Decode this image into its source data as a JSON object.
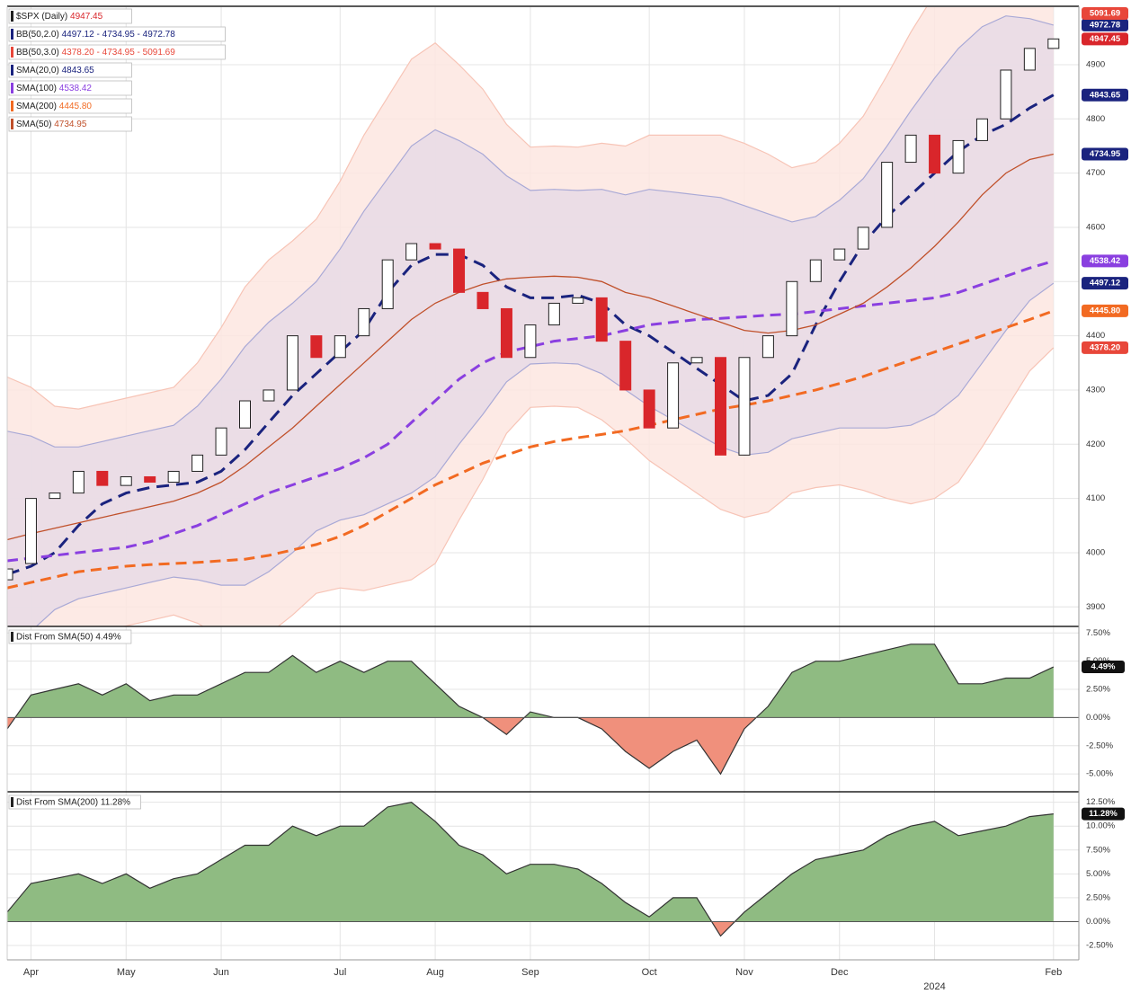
{
  "chart_data": [
    {
      "type": "candlestick",
      "categories": [
        null,
        "Apr",
        null,
        null,
        null,
        "May",
        null,
        null,
        null,
        "Jun",
        null,
        null,
        null,
        null,
        "Jul",
        null,
        null,
        null,
        "Aug",
        null,
        null,
        null,
        "Sep",
        null,
        null,
        null,
        null,
        "Oct",
        null,
        null,
        null,
        "Nov",
        null,
        null,
        null,
        "Dec",
        null,
        null,
        null,
        "2024",
        null,
        null,
        null,
        null,
        "Feb"
      ],
      "price": {
        "name": "$SPX (Daily)",
        "legend_value": "4947.45",
        "badge": "4947.45",
        "badge_color": "#d9262b",
        "open": [
          3950,
          3980,
          4100,
          4110,
          4150,
          4124,
          4140,
          4130,
          4150,
          4180,
          4230,
          4280,
          4300,
          4400,
          4360,
          4400,
          4450,
          4540,
          4570,
          4560,
          4480,
          4450,
          4360,
          4420,
          4460,
          4470,
          4390,
          4300,
          4230,
          4350,
          4360,
          4180,
          4360,
          4400,
          4500,
          4540,
          4560,
          4600,
          4720,
          4770,
          4700,
          4760,
          4800,
          4890,
          4930
        ],
        "close": [
          3970,
          4100,
          4110,
          4150,
          4124,
          4140,
          4130,
          4150,
          4180,
          4230,
          4280,
          4300,
          4400,
          4360,
          4400,
          4450,
          4540,
          4570,
          4560,
          4480,
          4450,
          4360,
          4420,
          4460,
          4470,
          4390,
          4300,
          4230,
          4350,
          4360,
          4180,
          4360,
          4400,
          4500,
          4540,
          4560,
          4600,
          4720,
          4770,
          4700,
          4760,
          4800,
          4890,
          4930,
          4947.45
        ],
        "up_color": "#222222",
        "down_color": "#d9262b"
      },
      "bands": [
        {
          "name": "BB(50,2.0)",
          "legend_value": "4497.12 - 4734.95 - 4972.78",
          "upper_badge": "4972.78",
          "lower_badge": "4497.12",
          "badge_color": "#1a237e",
          "fill": "#e7dbe6",
          "stroke": "#a9a9d6",
          "upper": [
            4224,
            4215,
            4195,
            4195,
            4205,
            4215,
            4225,
            4235,
            4270,
            4320,
            4380,
            4425,
            4460,
            4500,
            4560,
            4630,
            4690,
            4750,
            4780,
            4760,
            4735,
            4695,
            4668,
            4670,
            4668,
            4670,
            4660,
            4670,
            4665,
            4660,
            4655,
            4640,
            4625,
            4610,
            4620,
            4650,
            4690,
            4750,
            4815,
            4875,
            4930,
            4970,
            4990,
            4985,
            4973
          ],
          "lower": [
            3824,
            3855,
            3895,
            3915,
            3925,
            3935,
            3945,
            3955,
            3950,
            3940,
            3940,
            3965,
            4000,
            4040,
            4060,
            4070,
            4090,
            4110,
            4140,
            4200,
            4255,
            4315,
            4348,
            4350,
            4348,
            4330,
            4300,
            4270,
            4245,
            4220,
            4195,
            4180,
            4185,
            4210,
            4220,
            4230,
            4230,
            4230,
            4235,
            4255,
            4290,
            4350,
            4410,
            4465,
            4497
          ]
        },
        {
          "name": "BB(50,3.0)",
          "legend_value": "4378.20 - 4734.95 - 5091.69",
          "upper_badge": "5091.69",
          "lower_badge": "4378.20",
          "badge_color": "#e8473a",
          "fill": "#fde6e1",
          "stroke": "#f7c4b6",
          "upper": [
            4324,
            4305,
            4270,
            4265,
            4275,
            4285,
            4295,
            4305,
            4350,
            4415,
            4490,
            4540,
            4575,
            4615,
            4685,
            4770,
            4840,
            4910,
            4940,
            4900,
            4855,
            4790,
            4748,
            4750,
            4748,
            4755,
            4750,
            4770,
            4770,
            4770,
            4770,
            4755,
            4735,
            4710,
            4720,
            4755,
            4805,
            4880,
            4960,
            5030,
            5090,
            5125,
            5135,
            5115,
            5092
          ],
          "lower": [
            3724,
            3765,
            3820,
            3845,
            3855,
            3865,
            3875,
            3885,
            3870,
            3845,
            3830,
            3850,
            3885,
            3925,
            3935,
            3930,
            3940,
            3950,
            3980,
            4060,
            4135,
            4220,
            4268,
            4270,
            4268,
            4245,
            4210,
            4170,
            4140,
            4110,
            4080,
            4065,
            4075,
            4110,
            4120,
            4125,
            4115,
            4100,
            4090,
            4100,
            4130,
            4195,
            4265,
            4335,
            4378
          ]
        }
      ],
      "series": [
        {
          "name": "SMA(20,0)",
          "legend_value": "4843.65",
          "badge_color": "#1a237e",
          "color": "#1a237e",
          "dash": "14 8",
          "width": 3,
          "values": [
            3960,
            3975,
            4000,
            4050,
            4090,
            4110,
            4120,
            4125,
            4130,
            4150,
            4190,
            4240,
            4290,
            4330,
            4370,
            4410,
            4480,
            4530,
            4550,
            4550,
            4530,
            4490,
            4470,
            4470,
            4475,
            4460,
            4420,
            4400,
            4370,
            4340,
            4310,
            4280,
            4290,
            4330,
            4420,
            4500,
            4570,
            4620,
            4660,
            4700,
            4740,
            4770,
            4790,
            4820,
            4844
          ]
        },
        {
          "name": "SMA(100)",
          "legend_value": "4538.42",
          "badge_color": "#8a3fe0",
          "color": "#8a3fe0",
          "dash": "12 7",
          "width": 3,
          "values": [
            3985,
            3990,
            3995,
            4000,
            4005,
            4010,
            4020,
            4035,
            4050,
            4070,
            4090,
            4110,
            4125,
            4140,
            4155,
            4175,
            4200,
            4240,
            4280,
            4320,
            4350,
            4370,
            4380,
            4390,
            4395,
            4400,
            4410,
            4420,
            4425,
            4430,
            4432,
            4435,
            4438,
            4440,
            4445,
            4450,
            4455,
            4460,
            4465,
            4470,
            4480,
            4495,
            4510,
            4525,
            4538
          ]
        },
        {
          "name": "SMA(200)",
          "legend_value": "4445.80",
          "badge_color": "#f26a22",
          "color": "#f26a22",
          "dash": "12 7",
          "width": 3,
          "values": [
            3935,
            3945,
            3955,
            3965,
            3970,
            3975,
            3978,
            3980,
            3982,
            3985,
            3988,
            3995,
            4005,
            4015,
            4030,
            4050,
            4075,
            4100,
            4125,
            4145,
            4165,
            4180,
            4195,
            4205,
            4212,
            4218,
            4225,
            4235,
            4245,
            4255,
            4265,
            4272,
            4280,
            4290,
            4300,
            4312,
            4325,
            4340,
            4355,
            4370,
            4385,
            4400,
            4415,
            4430,
            4446
          ]
        },
        {
          "name": "SMA(50)",
          "legend_value": "4734.95",
          "badge_color": "#1a237e",
          "color": "#c0502a",
          "dash": "",
          "width": 1.3,
          "values": [
            4024,
            4035,
            4045,
            4055,
            4065,
            4075,
            4085,
            4095,
            4110,
            4130,
            4160,
            4195,
            4230,
            4270,
            4310,
            4350,
            4390,
            4430,
            4460,
            4480,
            4495,
            4505,
            4508,
            4510,
            4508,
            4500,
            4480,
            4470,
            4455,
            4440,
            4425,
            4410,
            4405,
            4410,
            4420,
            4440,
            4460,
            4490,
            4525,
            4565,
            4610,
            4660,
            4700,
            4725,
            4735
          ]
        }
      ],
      "ylim": [
        3864,
        5006
      ],
      "yticks": [
        3900,
        4000,
        4100,
        4200,
        4300,
        4400,
        4500,
        4600,
        4700,
        4800,
        4900
      ],
      "grid": true
    },
    {
      "type": "area",
      "title": "Dist From SMA(50) 4.49%",
      "badge": "4.49%",
      "pos_color": "#8fbb82",
      "neg_color": "#f0907c",
      "values": [
        -1,
        2,
        2.5,
        3,
        2,
        3,
        1.5,
        2,
        2,
        3,
        4,
        4,
        5.5,
        4,
        5,
        4,
        5,
        5,
        3,
        1,
        0,
        -1.5,
        0.5,
        0,
        0,
        -1,
        -3,
        -4.5,
        -3,
        -2,
        -5,
        -1,
        1,
        4,
        5,
        5,
        5.5,
        6,
        6.5,
        6.5,
        3,
        3,
        3.5,
        3.5,
        4.49
      ],
      "ylim": [
        -6.5,
        8
      ],
      "yticks": [
        {
          "value": 7.5,
          "label": "7.50%"
        },
        {
          "value": 5,
          "label": "5.00%"
        },
        {
          "value": 2.5,
          "label": "2.50%"
        },
        {
          "value": 0,
          "label": "0.00%"
        },
        {
          "value": -2.5,
          "label": "-2.50%"
        },
        {
          "value": -5,
          "label": "-5.00%"
        }
      ]
    },
    {
      "type": "area",
      "title": "Dist From SMA(200) 11.28%",
      "badge": "11.28%",
      "pos_color": "#8fbb82",
      "neg_color": "#f0907c",
      "values": [
        1,
        4,
        4.5,
        5,
        4,
        5,
        3.5,
        4.5,
        5,
        6.5,
        8,
        8,
        10,
        9,
        10,
        10,
        12,
        12.5,
        10.5,
        8,
        7,
        5,
        6,
        6,
        5.5,
        4,
        2,
        0.5,
        2.5,
        2.5,
        -1.5,
        1,
        3,
        5,
        6.5,
        7,
        7.5,
        9,
        10,
        10.5,
        9,
        9.5,
        10,
        11,
        11.28
      ],
      "ylim": [
        -4,
        13.5
      ],
      "yticks": [
        {
          "value": 12.5,
          "label": "12.50%"
        },
        {
          "value": 10,
          "label": "10.00%"
        },
        {
          "value": 7.5,
          "label": "7.50%"
        },
        {
          "value": 5,
          "label": "5.00%"
        },
        {
          "value": 2.5,
          "label": "2.50%"
        },
        {
          "value": 0,
          "label": "0.00%"
        },
        {
          "value": -2.5,
          "label": "-2.50%"
        }
      ]
    }
  ]
}
